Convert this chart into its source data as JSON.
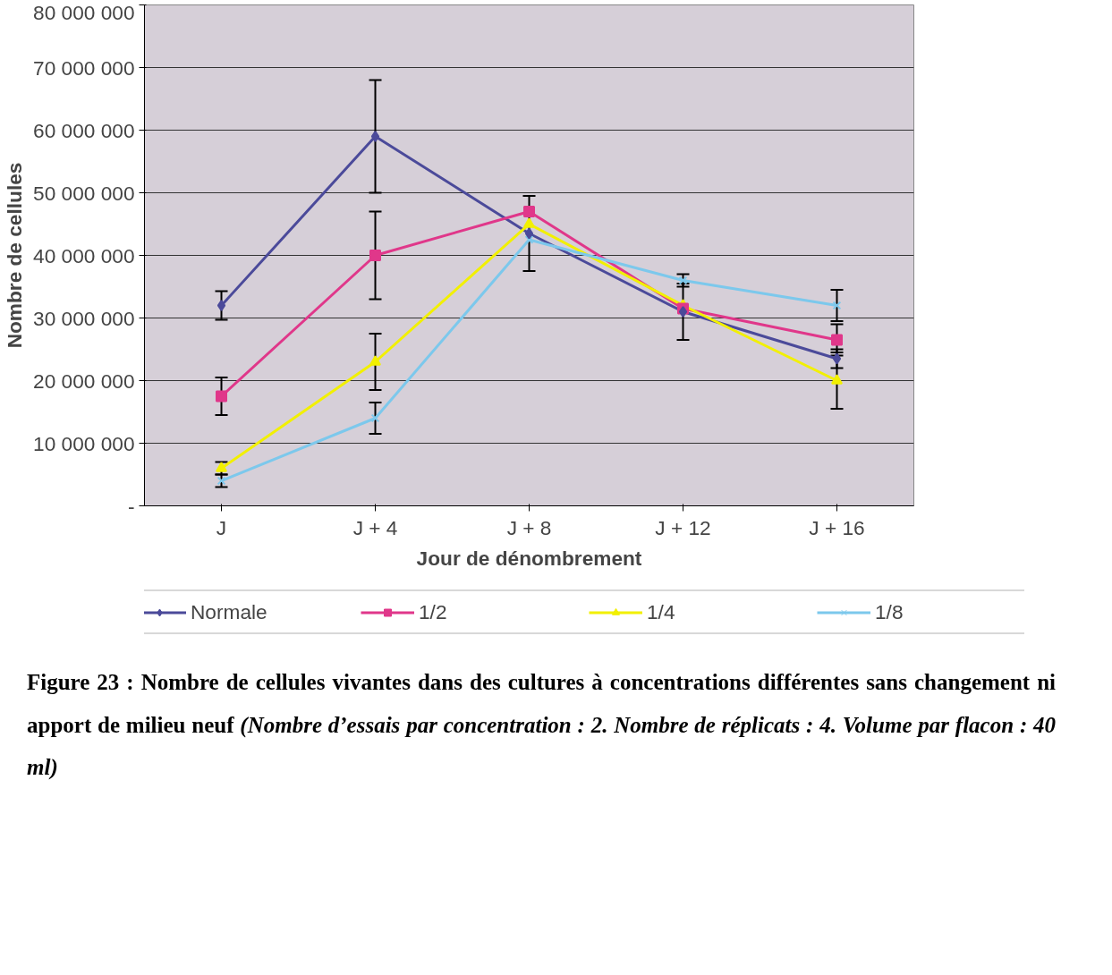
{
  "chart_data": {
    "type": "line",
    "xlabel": "Jour de dénombrement",
    "ylabel": "Nombre de cellules",
    "categories": [
      "J",
      "J + 4",
      "J + 8",
      "J + 12",
      "J + 16"
    ],
    "ylim": [
      0,
      80000000
    ],
    "yticks": [
      {
        "value": 0,
        "label": "-"
      },
      {
        "value": 10000000,
        "label": "10 000 000"
      },
      {
        "value": 20000000,
        "label": "20 000 000"
      },
      {
        "value": 30000000,
        "label": "30 000 000"
      },
      {
        "value": 40000000,
        "label": "40 000 000"
      },
      {
        "value": 50000000,
        "label": "50 000 000"
      },
      {
        "value": 60000000,
        "label": "60 000 000"
      },
      {
        "value": 70000000,
        "label": "70 000 000"
      },
      {
        "value": 80000000,
        "label": "80 000 000"
      }
    ],
    "grid": "y",
    "legend": "bottom",
    "line_style": "solid",
    "series": [
      {
        "name": "Normale",
        "color": "#4b4a9a",
        "marker": "diamond",
        "values": [
          32000000,
          59000000,
          43500000,
          31000000,
          23500000
        ],
        "errors": [
          2300000,
          9000000,
          6000000,
          4500000,
          1500000
        ]
      },
      {
        "name": "1/2",
        "color": "#e0378a",
        "marker": "square",
        "values": [
          17500000,
          40000000,
          47000000,
          31500000,
          26500000
        ],
        "errors": [
          3000000,
          7000000,
          null,
          null,
          2500000
        ]
      },
      {
        "name": "1/4",
        "color": "#f2f000",
        "marker": "triangle",
        "values": [
          6000000,
          23000000,
          45000000,
          32000000,
          20000000
        ],
        "errors": [
          1000000,
          4500000,
          null,
          null,
          4500000
        ]
      },
      {
        "name": "1/8",
        "color": "#7cc8ec",
        "marker": "cross",
        "values": [
          4000000,
          14000000,
          42500000,
          36000000,
          32000000
        ],
        "errors": [
          1000000,
          2500000,
          null,
          1000000,
          2500000
        ]
      }
    ],
    "annotations": [
      "Figure 23 : Nombre de cellules vivantes dans des cultures à concentrations différentes sans changement ni apport de milieu neuf",
      "(Nombre d’essais par concentration : 2. Nombre de réplicats : 4. Volume par flacon : 40 ml)"
    ]
  }
}
